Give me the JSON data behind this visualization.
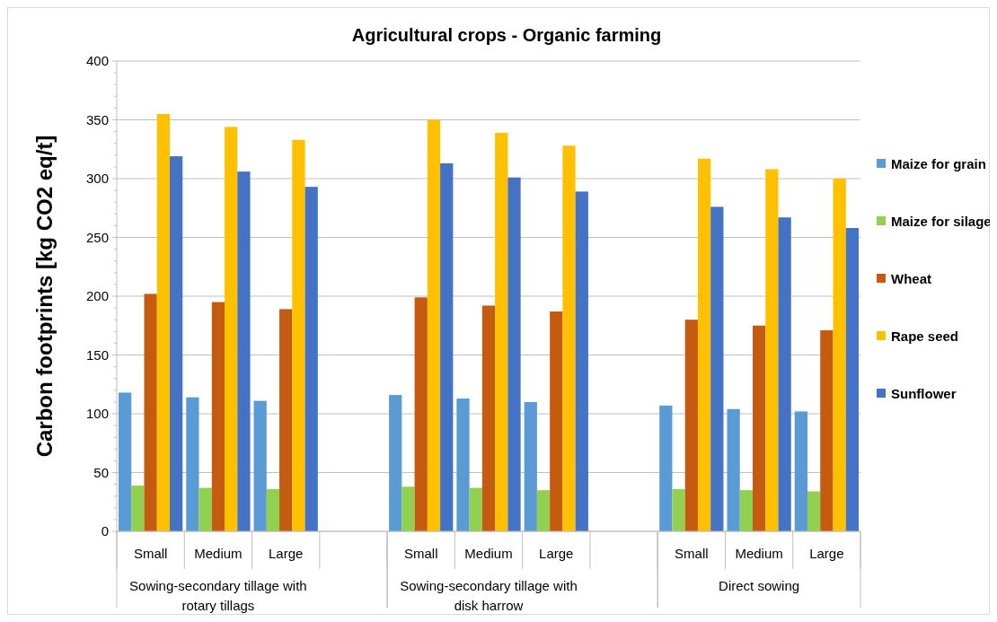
{
  "chart_data": {
    "type": "bar",
    "title": "Agricultural crops - Organic farming",
    "ylabel": "Carbon footprints [kg CO2 eq/t]",
    "categories": [
      "Small",
      "Medium",
      "Large",
      null,
      "Small",
      "Medium",
      "Large",
      null,
      "Small",
      "Medium",
      "Large"
    ],
    "annotations": [
      "Sowing-secondary tillage with rotary tillags",
      "Sowing-secondary tillage with disk harrow",
      "Direct sowing"
    ],
    "ylim": [
      0,
      400
    ],
    "yticks": [
      0,
      50,
      100,
      150,
      200,
      250,
      300,
      350,
      400
    ],
    "grid": "y",
    "legend": "right",
    "series": [
      {
        "name": "Maize for grain",
        "color": "#5b9bd5",
        "values": [
          118,
          114,
          111,
          null,
          116,
          113,
          110,
          null,
          107,
          104,
          102
        ]
      },
      {
        "name": "Maize for silage",
        "color": "#92d050",
        "values": [
          39,
          37,
          36,
          null,
          38,
          37,
          35,
          null,
          36,
          35,
          34
        ]
      },
      {
        "name": "Wheat",
        "color": "#c55a11",
        "values": [
          202,
          195,
          189,
          null,
          199,
          192,
          187,
          null,
          180,
          175,
          171
        ]
      },
      {
        "name": "Rape seed",
        "color": "#ffc000",
        "values": [
          355,
          344,
          333,
          null,
          350,
          339,
          328,
          null,
          317,
          308,
          300
        ]
      },
      {
        "name": "Sunflower",
        "color": "#4472c4",
        "values": [
          319,
          306,
          293,
          null,
          313,
          301,
          289,
          null,
          276,
          267,
          258
        ]
      }
    ]
  }
}
